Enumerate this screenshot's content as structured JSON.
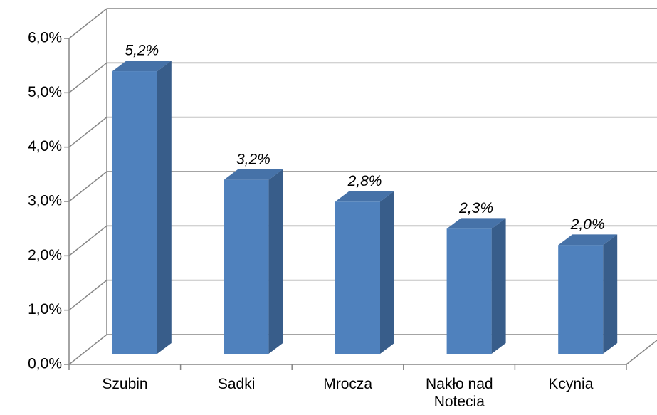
{
  "chart_data": {
    "type": "bar3d",
    "categories": [
      "Szubin",
      "Sadki",
      "Mrocza",
      "Nakło nad\nNotecia",
      "Kcynia"
    ],
    "values": [
      5.2,
      3.2,
      2.8,
      2.3,
      2.0
    ],
    "value_labels": [
      "5,2%",
      "3,2%",
      "2,8%",
      "2,3%",
      "2,0%"
    ],
    "color": "#4f81bd",
    "ylim": [
      0,
      6
    ],
    "yticks": [
      {
        "value": 0,
        "label": "0,0%"
      },
      {
        "value": 1,
        "label": "1,0%"
      },
      {
        "value": 2,
        "label": "2,0%"
      },
      {
        "value": 3,
        "label": "3,0%"
      },
      {
        "value": 4,
        "label": "4,0%"
      },
      {
        "value": 5,
        "label": "5,0%"
      },
      {
        "value": 6,
        "label": "6,0%"
      }
    ],
    "grid": true
  }
}
